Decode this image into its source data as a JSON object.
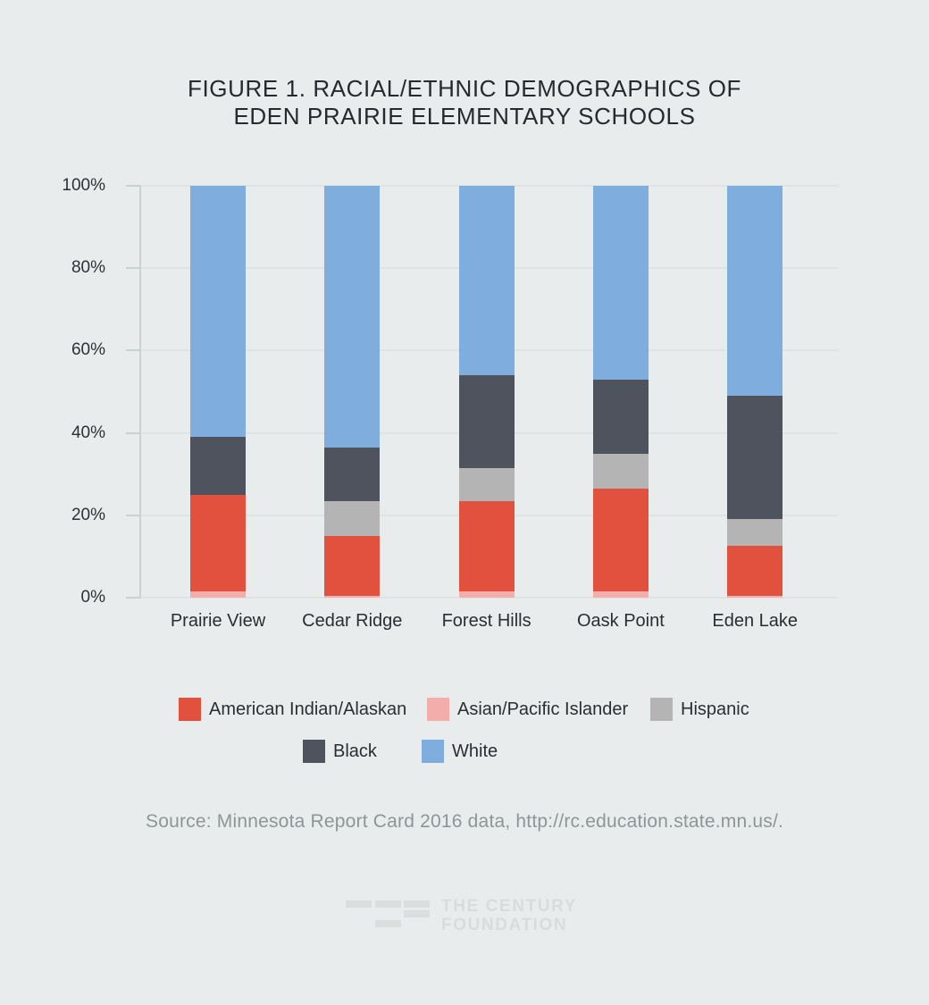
{
  "title_line1": "FIGURE 1. RACIAL/ETHNIC DEMOGRAPHICS OF",
  "title_line2": "EDEN PRAIRIE ELEMENTARY SCHOOLS",
  "source_text": "Source: Minnesota Report Card 2016 data, http://rc.education.state.mn.us/.",
  "logo": {
    "line1": "THE CENTURY",
    "line2": "FOUNDATION"
  },
  "colors": {
    "background": "#e9eced",
    "gridline": "#dfe3e3",
    "axis": "#cbd1d1",
    "title_text": "#26292d",
    "axis_text": "#2d3134",
    "source_text": "#8e9596",
    "logo": "#d8dcdc"
  },
  "chart_data": {
    "type": "bar",
    "stacked": true,
    "title": "FIGURE 1. RACIAL/ETHNIC DEMOGRAPHICS OF EDEN PRAIRIE ELEMENTARY SCHOOLS",
    "xlabel": "",
    "ylabel": "",
    "ylim": [
      0,
      100
    ],
    "grid": true,
    "y_ticks": [
      0,
      20,
      40,
      60,
      80,
      100
    ],
    "y_tick_suffix": "%",
    "categories": [
      "Prairie View",
      "Cedar Ridge",
      "Forest Hills",
      "Oask Point",
      "Eden Lake"
    ],
    "series": [
      {
        "name": "Asian/Pacific Islander",
        "color": "#f3aeab",
        "values": [
          1.5,
          0.5,
          1.5,
          1.5,
          0.5
        ]
      },
      {
        "name": "American Indian/Alaskan",
        "color": "#e2503e",
        "values": [
          23.5,
          14.5,
          22,
          25,
          12
        ]
      },
      {
        "name": "Hispanic",
        "color": "#b4b4b5",
        "values": [
          0,
          8.5,
          8,
          8.5,
          6.5
        ]
      },
      {
        "name": "Black",
        "color": "#4e535e",
        "values": [
          14,
          13,
          22.5,
          18,
          30
        ]
      },
      {
        "name": "White",
        "color": "#7eadde",
        "values": [
          61,
          63.5,
          46,
          47,
          51
        ]
      }
    ],
    "legend_rows": [
      [
        "American Indian/Alaskan",
        "Asian/Pacific Islander",
        "Hispanic"
      ],
      [
        "Black",
        "White"
      ]
    ],
    "legend_position": "bottom"
  }
}
